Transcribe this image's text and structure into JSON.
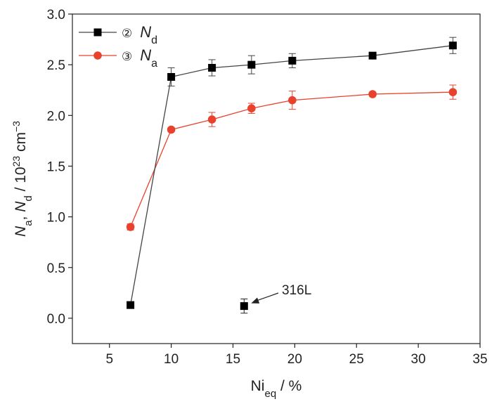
{
  "chart_data": {
    "type": "line",
    "xlabel_base": "Ni",
    "xlabel_sub": "eq",
    "xlabel_suffix": " / %",
    "ylabel_na": "N",
    "ylabel_na_sub": "a",
    "ylabel_sep": ", ",
    "ylabel_nd": "N",
    "ylabel_nd_sub": "d",
    "ylabel_unit_base": " / 10",
    "ylabel_unit_exp": "23",
    "ylabel_unit_cm": " cm",
    "ylabel_unit_cm_exp": "−3",
    "xlim": [
      2,
      35
    ],
    "ylim": [
      -0.25,
      3.0
    ],
    "xticks": [
      "5",
      "10",
      "15",
      "20",
      "25",
      "30",
      "35"
    ],
    "yticks": [
      "0.0",
      "0.5",
      "1.0",
      "1.5",
      "2.0",
      "2.5",
      "3.0"
    ],
    "series": [
      {
        "name": "N",
        "name_sub": "d",
        "index_symbol": "②",
        "color": "#000000",
        "color_line": "#444444",
        "marker": "square",
        "points": [
          {
            "x": 6.7,
            "y": 0.13,
            "err": 0
          },
          {
            "x": 10.0,
            "y": 2.38,
            "err": 0.09
          },
          {
            "x": 13.3,
            "y": 2.47,
            "err": 0.08
          },
          {
            "x": 16.5,
            "y": 2.5,
            "err": 0.09
          },
          {
            "x": 19.8,
            "y": 2.54,
            "err": 0.07
          },
          {
            "x": 26.3,
            "y": 2.59,
            "err": 0.03
          },
          {
            "x": 32.8,
            "y": 2.69,
            "err": 0.08
          }
        ]
      },
      {
        "name": "N",
        "name_sub": "a",
        "index_symbol": "③",
        "color": "#e8412c",
        "color_line": "#e8412c",
        "marker": "circle",
        "points": [
          {
            "x": 6.7,
            "y": 0.9,
            "err": 0.03
          },
          {
            "x": 10.0,
            "y": 1.86,
            "err": 0.02
          },
          {
            "x": 13.3,
            "y": 1.96,
            "err": 0.07
          },
          {
            "x": 16.5,
            "y": 2.07,
            "err": 0.05
          },
          {
            "x": 19.8,
            "y": 2.15,
            "err": 0.09
          },
          {
            "x": 26.3,
            "y": 2.21,
            "err": 0.02
          },
          {
            "x": 32.8,
            "y": 2.23,
            "err": 0.07
          }
        ]
      }
    ],
    "extra_point": {
      "x": 15.9,
      "y": 0.12,
      "err": 0.07,
      "color": "#000000",
      "marker": "square"
    },
    "annotation": {
      "text": "316L",
      "x": 15.9,
      "y": 0.12
    }
  }
}
